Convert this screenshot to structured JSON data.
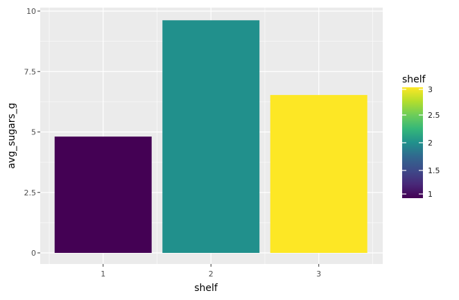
{
  "chart_data": {
    "type": "bar",
    "xlabel": "shelf",
    "ylabel": "avg_sugars_g",
    "categories": [
      "1",
      "2",
      "3"
    ],
    "values": [
      4.81,
      9.62,
      6.53
    ],
    "ylim": [
      0,
      10
    ],
    "y_ticks": [
      0,
      2.5,
      5,
      7.5,
      10
    ],
    "y_tick_labels": [
      "0",
      "2.5",
      "5",
      "7.5",
      "10"
    ],
    "grid": true,
    "legend": {
      "title": "shelf",
      "placement": "right",
      "type": "colorbar",
      "range": [
        1,
        3
      ],
      "ticks": [
        1,
        1.5,
        2,
        2.5,
        3
      ],
      "tick_labels": [
        "1",
        "1.5",
        "2",
        "2.5",
        "3"
      ]
    },
    "colors": {
      "bars": [
        "#440154",
        "#21908C",
        "#FDE725"
      ],
      "panel_background": "#EBEBEB",
      "gridline": "#FFFFFF"
    }
  }
}
